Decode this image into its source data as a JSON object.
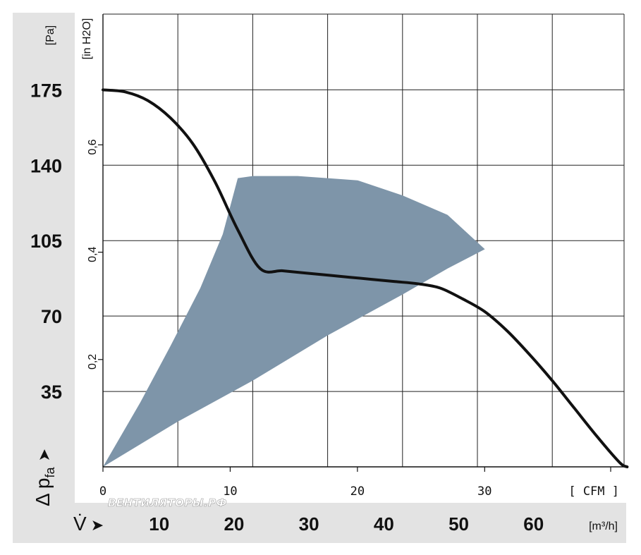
{
  "chart_data": {
    "type": "line",
    "title": "",
    "y_axis_primary": {
      "unit": "[Pa]",
      "ticks": [
        35,
        70,
        105,
        140,
        175
      ],
      "ylim": [
        0,
        210
      ]
    },
    "y_axis_secondary": {
      "unit": "[in H2O]",
      "ticks": [
        "0,2",
        "0,4",
        "0,6"
      ]
    },
    "x_axis_primary": {
      "unit": "[ CFM ]",
      "ticks": [
        0,
        10,
        20,
        30
      ],
      "xlim_m3h": [
        0,
        70
      ]
    },
    "x_axis_secondary": {
      "unit": "[m³/h]",
      "ticks": [
        10,
        20,
        30,
        40,
        50,
        60
      ]
    },
    "y_axis_symbol": {
      "main": "Δ p",
      "sub": "fa",
      "arrow": "➤"
    },
    "x_axis_symbol": {
      "main": "V̇",
      "arrow": "➤"
    },
    "series": [
      {
        "points_m3h_pa": [
          [
            0,
            175
          ],
          [
            3,
            174
          ],
          [
            6,
            170
          ],
          [
            9,
            162
          ],
          [
            12,
            150
          ],
          [
            15,
            132
          ],
          [
            18,
            110
          ],
          [
            21,
            92
          ],
          [
            24,
            91
          ],
          [
            27,
            90
          ],
          [
            30,
            89
          ],
          [
            33,
            88
          ],
          [
            36,
            87
          ],
          [
            39,
            86
          ],
          [
            42,
            85
          ],
          [
            45,
            83
          ],
          [
            48,
            78
          ],
          [
            51,
            72
          ],
          [
            54,
            63
          ],
          [
            57,
            52
          ],
          [
            60,
            40
          ],
          [
            63,
            27
          ],
          [
            66,
            14
          ],
          [
            69,
            2
          ],
          [
            70,
            0
          ]
        ]
      }
    ],
    "operating_range": {
      "color": "#7e95a9",
      "points_m3h_pa": [
        [
          0,
          0
        ],
        [
          10,
          21
        ],
        [
          20,
          40
        ],
        [
          30,
          61
        ],
        [
          40,
          80
        ],
        [
          46,
          92
        ],
        [
          51,
          101
        ],
        [
          46,
          117
        ],
        [
          40,
          126
        ],
        [
          34,
          133
        ],
        [
          26,
          135
        ],
        [
          20,
          135
        ],
        [
          18,
          134
        ],
        [
          16,
          108
        ],
        [
          13,
          83
        ],
        [
          9,
          56
        ],
        [
          5,
          30
        ],
        [
          0,
          0
        ]
      ]
    },
    "grid": true,
    "colors": {
      "curve": "#111111",
      "grid": "#222222",
      "band": "#e3e3e3"
    }
  },
  "watermark": "ВЕНТИЛЯТОРЫ.РФ"
}
